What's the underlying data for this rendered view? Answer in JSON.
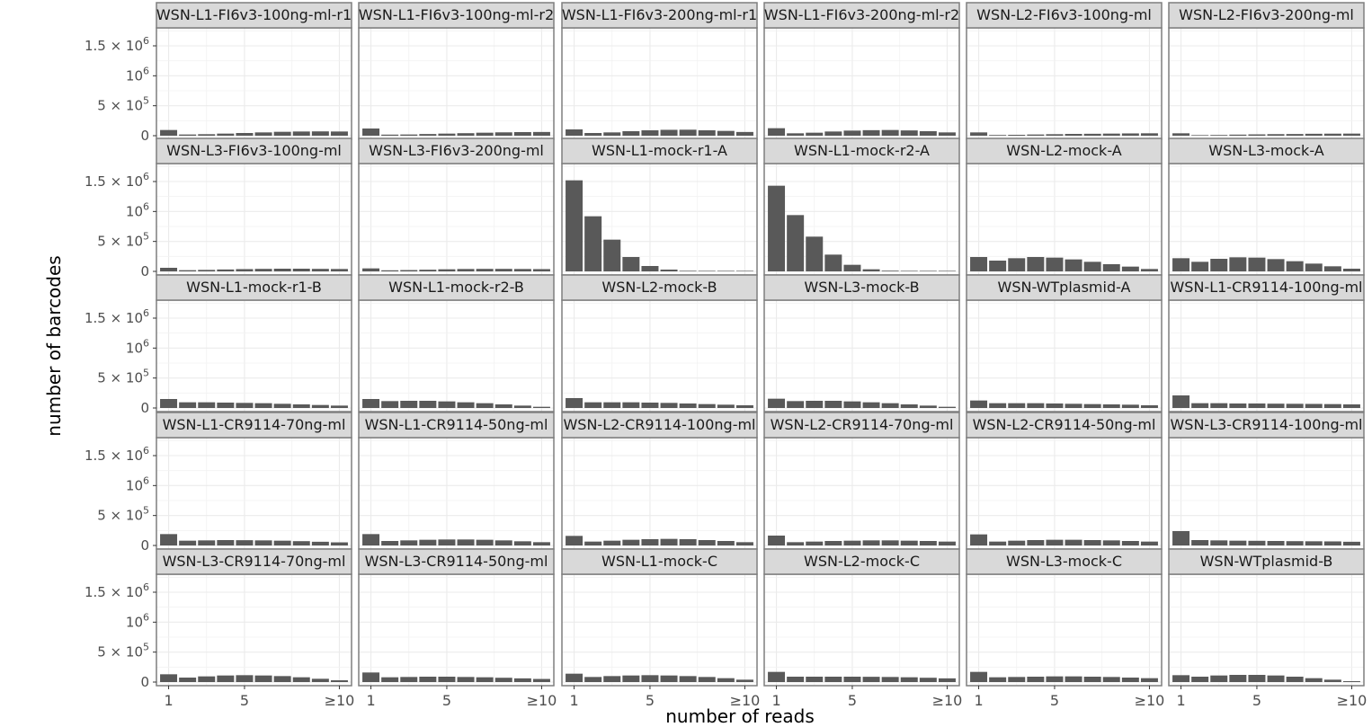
{
  "chart_data": {
    "type": "bar",
    "layout": "facet-grid 5 rows x 6 columns",
    "xlabel": "number of reads",
    "ylabel": "number of barcodes",
    "x_categories": [
      "1",
      "2",
      "3",
      "4",
      "5",
      "6",
      "7",
      "8",
      "9",
      "≥10"
    ],
    "x_tick_labels": [
      "1",
      "5",
      "≥10"
    ],
    "y_ticks": [
      {
        "value": 0,
        "label": "0",
        "sup": ""
      },
      {
        "value": 500000,
        "label": "5 × 10",
        "sup": "5"
      },
      {
        "value": 1000000,
        "label": "10",
        "sup": "6"
      },
      {
        "value": 1500000,
        "label": "1.5 × 10",
        "sup": "6"
      }
    ],
    "ylim": [
      0,
      1800000
    ],
    "bar_color": "#595959",
    "strip_color": "#d9d9d9",
    "grid": true,
    "panels": [
      {
        "label": "WSN-L1-FI6v3-100ng-ml-r1",
        "values": [
          95000,
          20000,
          25000,
          35000,
          45000,
          55000,
          65000,
          70000,
          72000,
          70000
        ]
      },
      {
        "label": "WSN-L1-FI6v3-100ng-ml-r2",
        "values": [
          120000,
          18000,
          20000,
          28000,
          35000,
          42000,
          50000,
          56000,
          60000,
          62000
        ]
      },
      {
        "label": "WSN-L1-FI6v3-200ng-ml-r1",
        "values": [
          105000,
          45000,
          55000,
          75000,
          90000,
          98000,
          100000,
          90000,
          80000,
          62000
        ]
      },
      {
        "label": "WSN-L1-FI6v3-200ng-ml-r2",
        "values": [
          125000,
          40000,
          50000,
          70000,
          85000,
          92000,
          95000,
          88000,
          75000,
          55000
        ]
      },
      {
        "label": "WSN-L2-FI6v3-100ng-ml",
        "values": [
          55000,
          12000,
          15000,
          20000,
          25000,
          30000,
          32000,
          35000,
          38000,
          40000
        ]
      },
      {
        "label": "WSN-L2-FI6v3-200ng-ml",
        "values": [
          40000,
          10000,
          12000,
          18000,
          22000,
          26000,
          28000,
          32000,
          34000,
          35000
        ]
      },
      {
        "label": "WSN-L3-FI6v3-100ng-ml",
        "values": [
          60000,
          20000,
          25000,
          32000,
          38000,
          42000,
          45000,
          45000,
          42000,
          40000
        ]
      },
      {
        "label": "WSN-L3-FI6v3-200ng-ml",
        "values": [
          50000,
          18000,
          22000,
          28000,
          35000,
          40000,
          42000,
          42000,
          40000,
          38000
        ]
      },
      {
        "label": "WSN-L1-mock-r1-A",
        "values": [
          1520000,
          920000,
          530000,
          240000,
          90000,
          30000,
          10000,
          4000,
          2000,
          1000
        ]
      },
      {
        "label": "WSN-L1-mock-r2-A",
        "values": [
          1430000,
          940000,
          580000,
          280000,
          110000,
          35000,
          12000,
          5000,
          2000,
          1000
        ]
      },
      {
        "label": "WSN-L2-mock-A",
        "values": [
          240000,
          180000,
          220000,
          240000,
          230000,
          200000,
          160000,
          120000,
          80000,
          40000
        ]
      },
      {
        "label": "WSN-L3-mock-A",
        "values": [
          220000,
          160000,
          210000,
          235000,
          230000,
          205000,
          170000,
          130000,
          85000,
          45000
        ]
      },
      {
        "label": "WSN-L1-mock-r1-B",
        "values": [
          150000,
          95000,
          95000,
          90000,
          85000,
          80000,
          70000,
          60000,
          50000,
          40000
        ]
      },
      {
        "label": "WSN-L1-mock-r2-B",
        "values": [
          150000,
          115000,
          120000,
          120000,
          110000,
          95000,
          80000,
          60000,
          40000,
          20000
        ]
      },
      {
        "label": "WSN-L2-mock-B",
        "values": [
          165000,
          95000,
          95000,
          95000,
          90000,
          85000,
          75000,
          65000,
          55000,
          45000
        ]
      },
      {
        "label": "WSN-L3-mock-B",
        "values": [
          155000,
          115000,
          120000,
          120000,
          110000,
          95000,
          80000,
          60000,
          40000,
          20000
        ]
      },
      {
        "label": "WSN-WTplasmid-A",
        "values": [
          125000,
          80000,
          80000,
          80000,
          75000,
          70000,
          65000,
          60000,
          55000,
          45000
        ]
      },
      {
        "label": "WSN-L1-CR9114-100ng-ml",
        "values": [
          210000,
          80000,
          80000,
          75000,
          75000,
          72000,
          70000,
          68000,
          65000,
          60000
        ]
      },
      {
        "label": "WSN-L1-CR9114-70ng-ml",
        "values": [
          190000,
          80000,
          85000,
          90000,
          88000,
          85000,
          80000,
          72000,
          62000,
          52000
        ]
      },
      {
        "label": "WSN-L1-CR9114-50ng-ml",
        "values": [
          190000,
          75000,
          85000,
          95000,
          100000,
          100000,
          95000,
          85000,
          70000,
          55000
        ]
      },
      {
        "label": "WSN-L2-CR9114-100ng-ml",
        "values": [
          160000,
          65000,
          80000,
          95000,
          105000,
          110000,
          105000,
          90000,
          75000,
          55000
        ]
      },
      {
        "label": "WSN-L2-CR9114-70ng-ml",
        "values": [
          165000,
          55000,
          65000,
          75000,
          80000,
          85000,
          85000,
          80000,
          75000,
          65000
        ]
      },
      {
        "label": "WSN-L2-CR9114-50ng-ml",
        "values": [
          185000,
          65000,
          80000,
          90000,
          95000,
          95000,
          90000,
          85000,
          75000,
          65000
        ]
      },
      {
        "label": "WSN-L3-CR9114-100ng-ml",
        "values": [
          240000,
          90000,
          85000,
          80000,
          78000,
          75000,
          72000,
          70000,
          68000,
          62000
        ]
      },
      {
        "label": "WSN-L3-CR9114-70ng-ml",
        "values": [
          130000,
          75000,
          95000,
          110000,
          115000,
          110000,
          100000,
          80000,
          55000,
          30000
        ]
      },
      {
        "label": "WSN-L3-CR9114-50ng-ml",
        "values": [
          160000,
          80000,
          85000,
          90000,
          90000,
          85000,
          80000,
          72000,
          62000,
          52000
        ]
      },
      {
        "label": "WSN-L1-mock-C",
        "values": [
          140000,
          85000,
          100000,
          110000,
          115000,
          110000,
          100000,
          85000,
          65000,
          40000
        ]
      },
      {
        "label": "WSN-L2-mock-C",
        "values": [
          170000,
          90000,
          90000,
          90000,
          90000,
          88000,
          85000,
          80000,
          72000,
          62000
        ]
      },
      {
        "label": "WSN-L3-mock-C",
        "values": [
          170000,
          80000,
          85000,
          90000,
          95000,
          95000,
          90000,
          85000,
          75000,
          65000
        ]
      },
      {
        "label": "WSN-WTplasmid-B",
        "values": [
          115000,
          90000,
          110000,
          120000,
          120000,
          110000,
          90000,
          65000,
          40000,
          15000
        ]
      }
    ]
  }
}
